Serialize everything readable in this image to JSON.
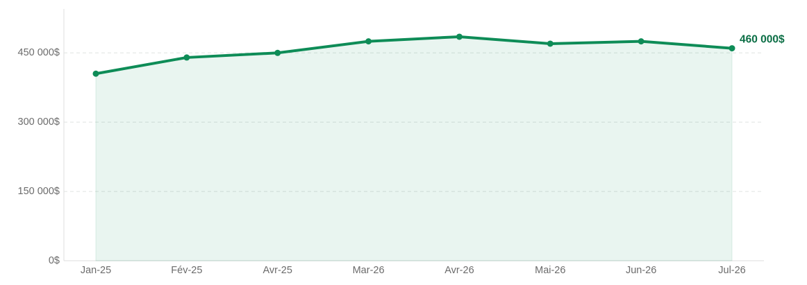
{
  "chart_data": {
    "type": "area-line",
    "categories": [
      "Jan-25",
      "Fév-25",
      "Avr-25",
      "Mar-26",
      "Avr-26",
      "Mai-26",
      "Jun-26",
      "Jul-26"
    ],
    "series": [
      {
        "color": "#0e8c57",
        "values": [
          405000,
          440000,
          450000,
          475000,
          485000,
          470000,
          475000,
          460000
        ],
        "value_labels": [
          null,
          null,
          null,
          null,
          null,
          null,
          null,
          "460 000$"
        ]
      }
    ],
    "ylim": [
      0,
      545000
    ],
    "yticks": [
      {
        "value": 0,
        "label": "0$"
      },
      {
        "value": 150000,
        "label": "150 000$"
      },
      {
        "value": 300000,
        "label": "300 000$"
      },
      {
        "value": 450000,
        "label": "450 000$"
      }
    ],
    "grid": true
  }
}
